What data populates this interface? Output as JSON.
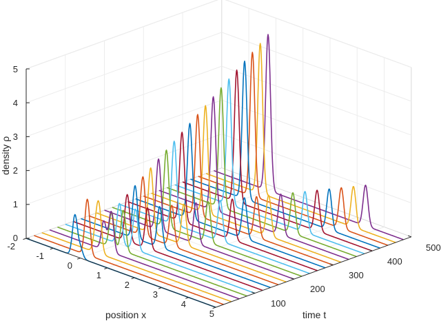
{
  "chart_data": {
    "type": "line",
    "subtype": "3d-waterfall",
    "xlabel": "position x",
    "ylabel": "time t",
    "zlabel": "density ρ",
    "xlim": [
      -2,
      5
    ],
    "ylim": [
      0,
      500
    ],
    "zlim": [
      0,
      5
    ],
    "x_ticks": [
      "-2",
      "-1",
      "0",
      "1",
      "2",
      "3",
      "4",
      "5"
    ],
    "y_ticks": [
      "100",
      "200",
      "300",
      "400",
      "500"
    ],
    "z_ticks": [
      "0",
      "1",
      "2",
      "3",
      "4",
      "5"
    ],
    "grid": true,
    "series_colors": [
      "#0072BD",
      "#D95319",
      "#EDB120",
      "#7E2F8E",
      "#77AC30",
      "#4DBEEE",
      "#A2142F"
    ],
    "num_series": 25,
    "time_step": 20,
    "stationary_peak": {
      "x": 0.0,
      "height_start": 0.3,
      "height_end": 4.6
    },
    "moving_peak": {
      "x_start": -0.2,
      "x_end": 3.6,
      "height_start": 1.2,
      "height_end": 1.2
    }
  }
}
